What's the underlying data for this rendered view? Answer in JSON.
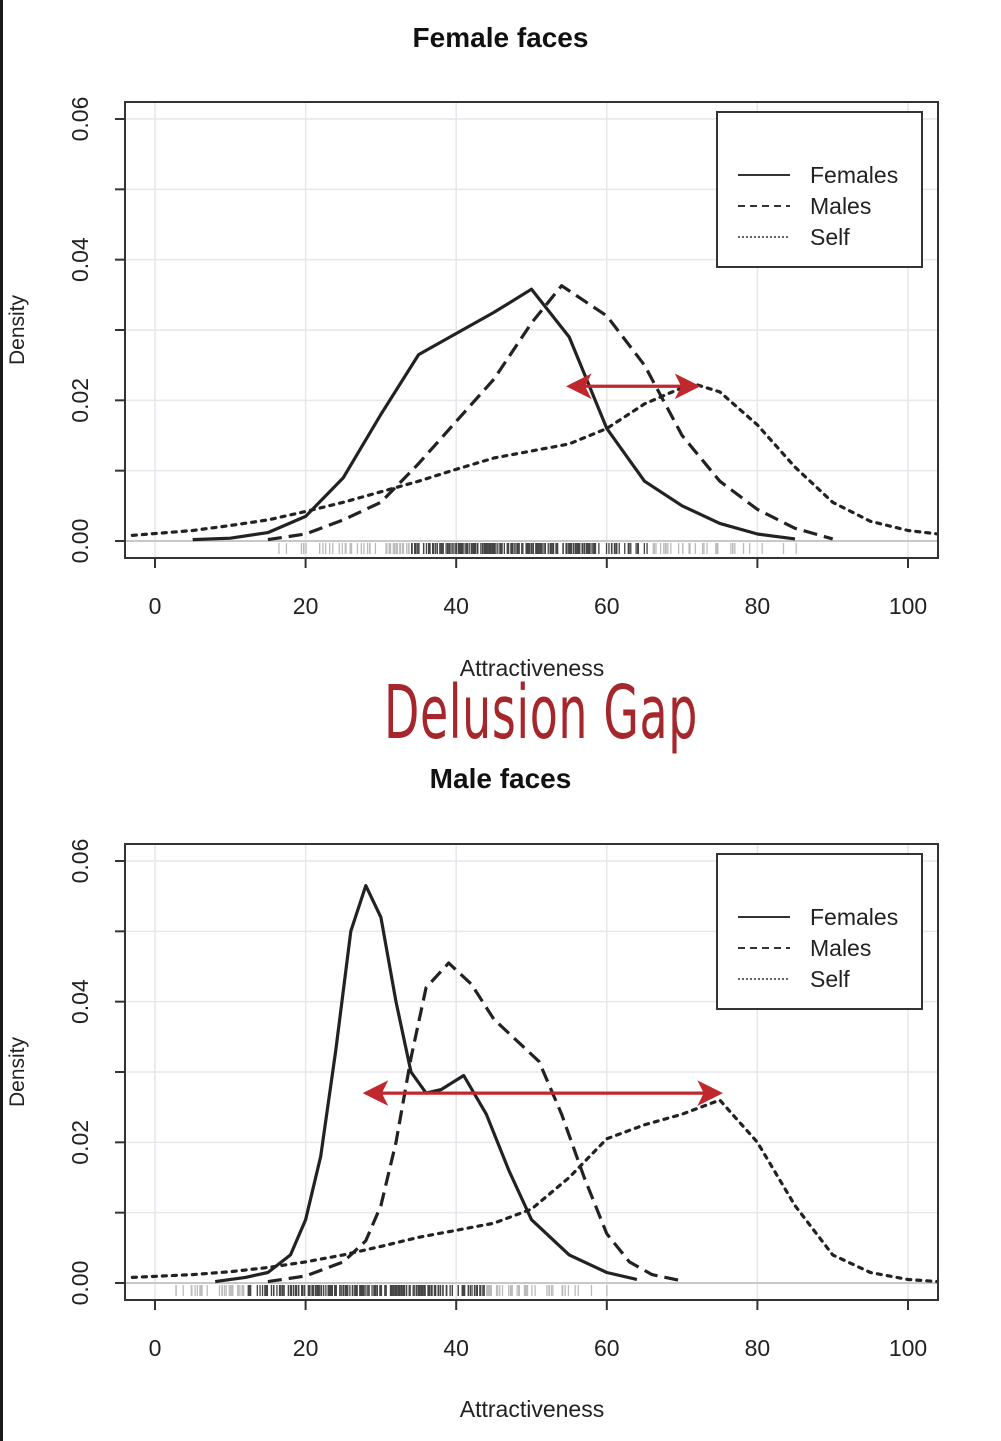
{
  "overlay_text": "Delusion Gap",
  "annotation_color": "#c0282d",
  "chart_data": [
    {
      "type": "line",
      "title": "Female faces",
      "xlabel": "Attractiveness",
      "ylabel": "Density",
      "xlim": [
        0,
        100
      ],
      "ylim": [
        0,
        0.06
      ],
      "x_ticks": [
        0,
        20,
        40,
        60,
        80,
        100
      ],
      "x_tick_labels": [
        "0",
        "20",
        "40",
        "60",
        "80",
        "100"
      ],
      "y_ticks": [
        0,
        0.02,
        0.04,
        0.06
      ],
      "y_tick_labels": [
        "0.00",
        "0.02",
        "0.04",
        "0.06"
      ],
      "grid": true,
      "legend_position": "top-right",
      "series": [
        {
          "name": "Females",
          "style": "solid",
          "x": [
            5,
            10,
            15,
            20,
            25,
            30,
            35,
            40,
            45,
            50,
            55,
            60,
            65,
            70,
            75,
            80,
            85
          ],
          "y": [
            0.0002,
            0.0004,
            0.0012,
            0.0035,
            0.009,
            0.018,
            0.0265,
            0.0295,
            0.0325,
            0.0358,
            0.029,
            0.016,
            0.0085,
            0.005,
            0.0025,
            0.001,
            0.0003
          ]
        },
        {
          "name": "Males",
          "style": "dashed",
          "x": [
            15,
            20,
            25,
            30,
            35,
            40,
            45,
            50,
            54,
            60,
            65,
            70,
            75,
            80,
            85,
            90
          ],
          "y": [
            0.0002,
            0.001,
            0.003,
            0.0055,
            0.011,
            0.017,
            0.023,
            0.031,
            0.0363,
            0.032,
            0.025,
            0.015,
            0.0085,
            0.0045,
            0.0018,
            0.0003
          ]
        },
        {
          "name": "Self",
          "style": "dotted",
          "x": [
            -3,
            5,
            10,
            15,
            20,
            25,
            30,
            35,
            40,
            45,
            50,
            55,
            60,
            65,
            70,
            72,
            75,
            80,
            85,
            90,
            95,
            100,
            104
          ],
          "y": [
            0.0008,
            0.0015,
            0.0022,
            0.003,
            0.0042,
            0.0055,
            0.007,
            0.0085,
            0.0102,
            0.0118,
            0.0128,
            0.0138,
            0.016,
            0.0195,
            0.0218,
            0.0222,
            0.0212,
            0.0165,
            0.0105,
            0.0055,
            0.0028,
            0.0015,
            0.001
          ]
        }
      ],
      "gap_arrow": {
        "x_start": 55,
        "x_end": 72,
        "y": 0.022
      }
    },
    {
      "type": "line",
      "title": "Male faces",
      "xlabel": "Attractiveness",
      "ylabel": "Density",
      "xlim": [
        0,
        100
      ],
      "ylim": [
        0,
        0.06
      ],
      "x_ticks": [
        0,
        20,
        40,
        60,
        80,
        100
      ],
      "x_tick_labels": [
        "0",
        "20",
        "40",
        "60",
        "80",
        "100"
      ],
      "y_ticks": [
        0,
        0.02,
        0.04,
        0.06
      ],
      "y_tick_labels": [
        "0.00",
        "0.02",
        "0.04",
        "0.06"
      ],
      "grid": true,
      "legend_position": "top-right",
      "series": [
        {
          "name": "Females",
          "style": "solid",
          "x": [
            8,
            12,
            15,
            18,
            20,
            22,
            24,
            26,
            28,
            30,
            32,
            34,
            36,
            38,
            41,
            44,
            47,
            50,
            55,
            60,
            64
          ],
          "y": [
            0.0002,
            0.0008,
            0.0015,
            0.004,
            0.009,
            0.018,
            0.033,
            0.05,
            0.0565,
            0.052,
            0.04,
            0.03,
            0.027,
            0.0275,
            0.0295,
            0.024,
            0.016,
            0.009,
            0.004,
            0.0015,
            0.0005
          ]
        },
        {
          "name": "Males",
          "style": "dashed",
          "x": [
            15,
            20,
            25,
            28,
            30,
            32,
            34,
            36,
            39,
            42,
            45,
            48,
            51,
            54,
            57,
            60,
            63,
            66,
            70
          ],
          "y": [
            0.0002,
            0.001,
            0.003,
            0.006,
            0.011,
            0.02,
            0.032,
            0.042,
            0.0455,
            0.0425,
            0.0375,
            0.0345,
            0.0315,
            0.024,
            0.015,
            0.007,
            0.003,
            0.0012,
            0.0003
          ]
        },
        {
          "name": "Self",
          "style": "dotted",
          "x": [
            -3,
            5,
            10,
            15,
            20,
            25,
            30,
            35,
            40,
            45,
            50,
            55,
            60,
            65,
            70,
            75,
            80,
            85,
            90,
            95,
            100,
            104
          ],
          "y": [
            0.0008,
            0.0012,
            0.0016,
            0.0022,
            0.003,
            0.004,
            0.0052,
            0.0065,
            0.0075,
            0.0085,
            0.0105,
            0.015,
            0.0205,
            0.0225,
            0.024,
            0.026,
            0.02,
            0.011,
            0.004,
            0.0015,
            0.0005,
            0.0002
          ]
        }
      ],
      "gap_arrow": {
        "x_start": 28,
        "x_end": 75,
        "y": 0.027
      }
    }
  ]
}
